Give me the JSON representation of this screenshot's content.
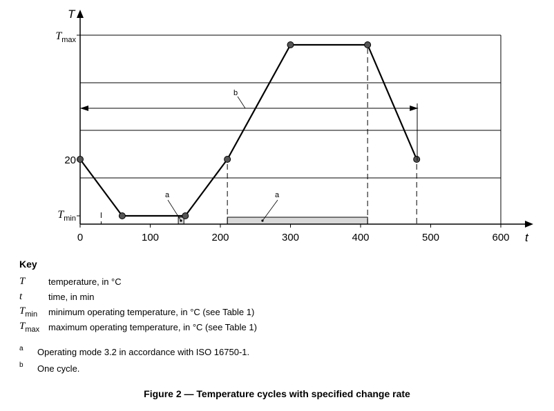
{
  "chart_data": {
    "type": "line",
    "x_axis": {
      "label": "t",
      "range": [
        0,
        600
      ],
      "ticks": [
        "0",
        "100",
        "200",
        "300",
        "400",
        "500",
        "600"
      ]
    },
    "y_axis": {
      "label": "T",
      "tick_labels": {
        "tmax": "T",
        "tmax_sub": "max",
        "twenty": "20",
        "tmin": "T",
        "tmin_sub": "min"
      }
    },
    "series": [
      {
        "points": [
          {
            "x": 0,
            "y": "20"
          },
          {
            "x": 60,
            "y": "Tmin"
          },
          {
            "x": 150,
            "y": "Tmin"
          },
          {
            "x": 210,
            "y": "20"
          },
          {
            "x": 300,
            "y": "Tmax"
          },
          {
            "x": 410,
            "y": "Tmax"
          },
          {
            "x": 480,
            "y": "20"
          }
        ]
      }
    ],
    "operating_mode_intervals": [
      {
        "from": 140,
        "to": 148,
        "label": "a"
      },
      {
        "from": 210,
        "to": 410,
        "label": "a"
      }
    ],
    "cycle": {
      "from": 0,
      "to": 480,
      "label": "b"
    }
  },
  "key": {
    "title": "Key",
    "items": [
      {
        "symbol": "T",
        "sub": "",
        "text": "temperature, in °C"
      },
      {
        "symbol": "t",
        "sub": "",
        "text": "time, in min"
      },
      {
        "symbol": "T",
        "sub": "min",
        "text": "minimum operating temperature, in °C (see Table 1)"
      },
      {
        "symbol": "T",
        "sub": "max",
        "text": "maximum operating temperature, in °C (see Table 1)"
      }
    ]
  },
  "notes": [
    {
      "mark": "a",
      "text": "Operating mode 3.2 in accordance with ISO 16750-1."
    },
    {
      "mark": "b",
      "text": "One cycle."
    }
  ],
  "caption": "Figure 2 — Temperature cycles with specified change rate"
}
